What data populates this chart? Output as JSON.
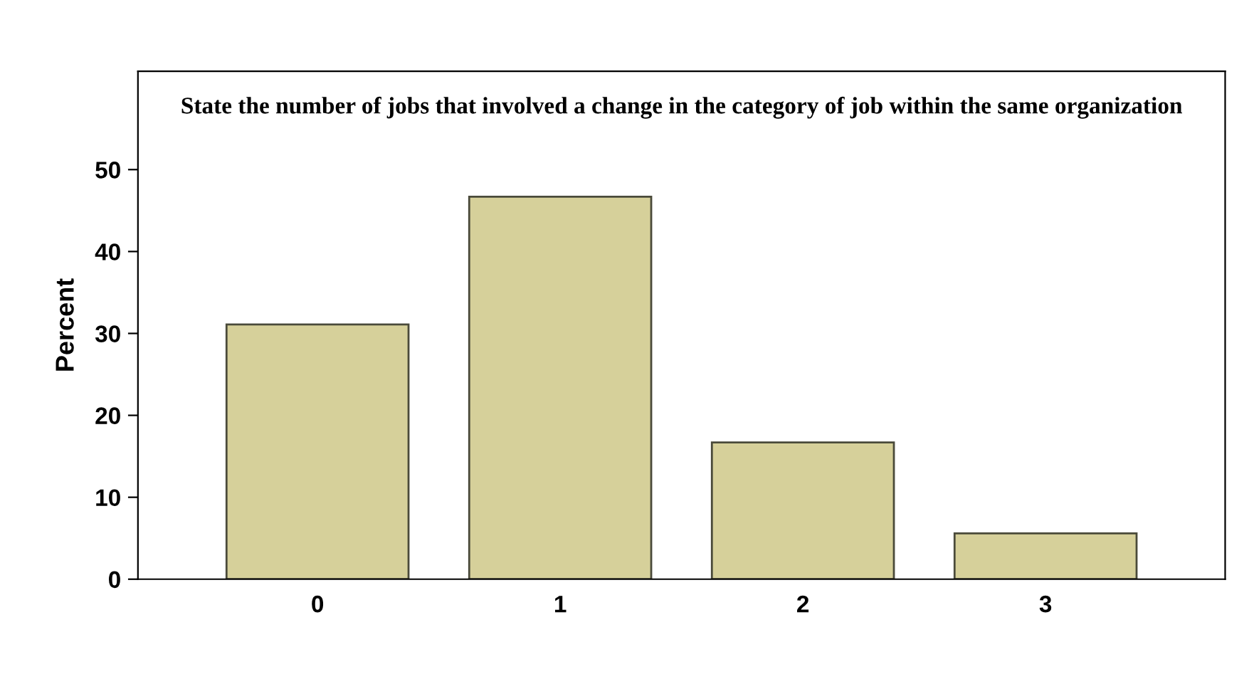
{
  "chart_data": {
    "type": "bar",
    "title": "State the number of jobs that involved a change in the category of job within the same organization",
    "ylabel": "Percent",
    "categories": [
      "0",
      "1",
      "2",
      "3"
    ],
    "values": [
      31.1,
      46.7,
      16.7,
      5.6
    ],
    "color": "#d6d09a",
    "ylim": [
      0,
      62
    ],
    "yticks": [
      0,
      10,
      20,
      30,
      40,
      50
    ],
    "grid": false,
    "legend": false
  }
}
